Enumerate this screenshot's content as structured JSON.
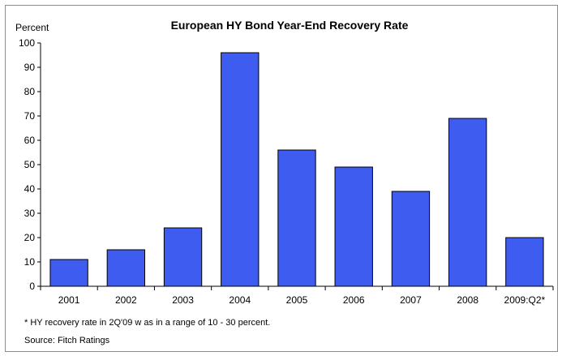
{
  "chart_data": {
    "type": "bar",
    "title": "European HY Bond Year-End Recovery Rate",
    "ylabel": "Percent",
    "xlabel": "",
    "categories": [
      "2001",
      "2002",
      "2003",
      "2004",
      "2005",
      "2006",
      "2007",
      "2008",
      "2009:Q2*"
    ],
    "values": [
      11,
      15,
      24,
      96,
      56,
      49,
      39,
      69,
      20
    ],
    "ylim": [
      0,
      100
    ],
    "yticks": [
      "0",
      "10",
      "20",
      "30",
      "40",
      "50",
      "60",
      "70",
      "80",
      "90",
      "100"
    ],
    "grid": false,
    "legend": "none",
    "bar_color": "#3e5cf0"
  },
  "notes": {
    "footnote": "* HY recovery rate in 2Q'09 w as in a range of 10 - 30 percent.",
    "source": "Source: Fitch Ratings"
  }
}
